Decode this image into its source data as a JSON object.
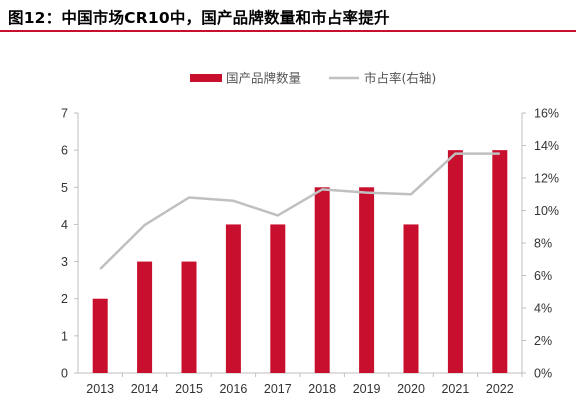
{
  "figure_title": "图12：中国市场CR10中，国产品牌数量和市占率提升",
  "colors": {
    "bar": "#c8102e",
    "line": "#c0c0c0",
    "axis": "#bfbfbf",
    "title_rule": "#c8102e"
  },
  "chart_data": {
    "type": "bar",
    "categories": [
      "2013",
      "2014",
      "2015",
      "2016",
      "2017",
      "2018",
      "2019",
      "2020",
      "2021",
      "2022"
    ],
    "series": [
      {
        "name": "国产品牌数量",
        "type": "bar",
        "axis": "left",
        "values": [
          2,
          3,
          3,
          4,
          4,
          5,
          5,
          4,
          6,
          6
        ]
      },
      {
        "name": "市占率(右轴)",
        "type": "line",
        "axis": "right",
        "values": [
          6.4,
          9.1,
          10.8,
          10.6,
          9.7,
          11.3,
          11.1,
          11.0,
          13.5,
          13.5
        ]
      }
    ],
    "y_left": {
      "lim": [
        0,
        7
      ],
      "ticks": [
        "0",
        "1",
        "2",
        "3",
        "4",
        "5",
        "6",
        "7"
      ]
    },
    "y_right": {
      "lim": [
        0,
        16
      ],
      "ticks": [
        "0%",
        "2%",
        "4%",
        "6%",
        "8%",
        "10%",
        "12%",
        "14%",
        "16%"
      ]
    },
    "legend_position": "top-center",
    "grid": false
  }
}
